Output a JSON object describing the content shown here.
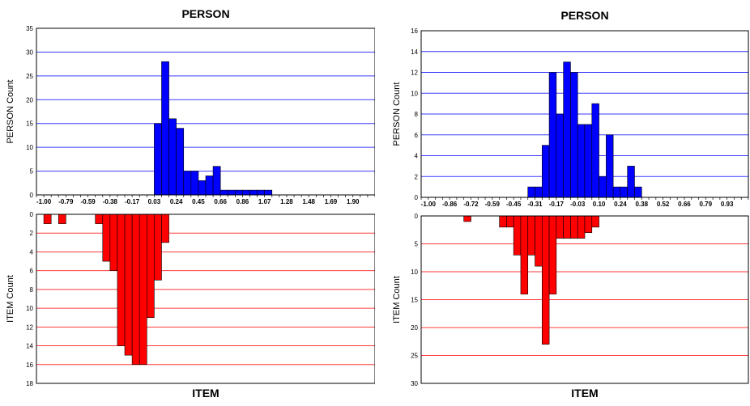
{
  "chart_data": [
    {
      "type": "bar",
      "top_title": "PERSON",
      "bottom_title": "ITEM",
      "top_ylabel": "PERSON Count",
      "bottom_ylabel": "ITEM Count",
      "top_color": "#0000ff",
      "bottom_color": "#ff0000",
      "x_tick_labels": [
        "-1.00",
        "-0.79",
        "-0.59",
        "-0.38",
        "-0.17",
        "0.03",
        "0.24",
        "0.45",
        "0.66",
        "0.86",
        "1.07",
        "1.28",
        "1.48",
        "1.69",
        "1.90"
      ],
      "top_yticks": [
        "0",
        "5",
        "10",
        "15",
        "20",
        "25",
        "30",
        "35"
      ],
      "bottom_yticks": [
        "0",
        "2",
        "4",
        "6",
        "8",
        "10",
        "12",
        "14",
        "16",
        "18"
      ],
      "top_ylim": [
        0,
        35
      ],
      "bottom_ylim": [
        0,
        18
      ],
      "bins": 46,
      "top_series": {
        "bins": [
          16,
          17,
          18,
          19,
          20,
          21,
          22,
          23,
          24,
          25,
          26,
          27,
          28,
          29,
          30,
          31
        ],
        "values": [
          15,
          28,
          16,
          14,
          5,
          5,
          3,
          4,
          6,
          1,
          1,
          1,
          1,
          1,
          1,
          1
        ]
      },
      "bottom_series": {
        "bins": [
          1,
          3,
          8,
          9,
          10,
          11,
          12,
          13,
          14,
          15,
          16,
          17
        ],
        "values": [
          1,
          1,
          1,
          5,
          6,
          14,
          15,
          16,
          16,
          11,
          7,
          3
        ]
      }
    },
    {
      "type": "bar",
      "top_title": "PERSON",
      "bottom_title": "ITEM",
      "top_ylabel": "PERSON Count",
      "bottom_ylabel": "ITEM Count",
      "top_color": "#0000ff",
      "bottom_color": "#ff0000",
      "x_tick_labels": [
        "-1.00",
        "-0.86",
        "-0.72",
        "-0.59",
        "-0.45",
        "-0.31",
        "-0.17",
        "-0.03",
        "0.10",
        "0.24",
        "0.38",
        "0.52",
        "0.66",
        "0.79",
        "0.93"
      ],
      "top_yticks": [
        "0",
        "2",
        "4",
        "6",
        "8",
        "10",
        "12",
        "14",
        "16"
      ],
      "bottom_yticks": [
        "0",
        "5",
        "10",
        "15",
        "20",
        "25",
        "30"
      ],
      "top_ylim": [
        0,
        16
      ],
      "bottom_ylim": [
        0,
        30
      ],
      "bins": 46,
      "top_series": {
        "bins": [
          15,
          16,
          17,
          18,
          19,
          20,
          21,
          22,
          23,
          24,
          25,
          26,
          27,
          28,
          29,
          30,
          31,
          32,
          33
        ],
        "values": [
          1,
          1,
          5,
          12,
          8,
          13,
          12,
          7,
          7,
          9,
          2,
          6,
          1,
          1,
          3,
          1,
          0,
          0,
          0
        ]
      },
      "bottom_series": {
        "bins": [
          6,
          11,
          12,
          13,
          14,
          15,
          16,
          17,
          18,
          19,
          20,
          21,
          22,
          23,
          24
        ],
        "values": [
          1,
          2,
          2,
          7,
          14,
          7,
          9,
          23,
          14,
          4,
          4,
          4,
          4,
          3,
          2
        ]
      }
    }
  ]
}
